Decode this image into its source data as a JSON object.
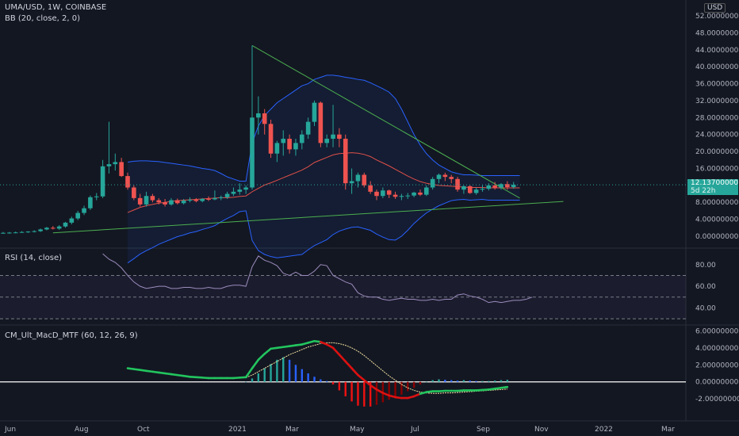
{
  "header": {
    "symbol_line": "UMA/USD, 1W, COINBASE",
    "bb_line": "BB (20, close, 2, 0)",
    "rsi_line": "RSI (14, close)",
    "macd_line": "CM_Ult_MacD_MTF (60, 12, 26, 9)",
    "currency": "USD"
  },
  "price_badge": {
    "value": "12.13700000",
    "countdown": "5d 22h"
  },
  "colors": {
    "background": "#131722",
    "up": "#26a69a",
    "down": "#ef5350",
    "bb_band": "#2962ff",
    "bb_basis": "#e0504a",
    "trend": "#4caf50",
    "rsi": "#9c8cbd",
    "macd_green": "#22c55e",
    "macd_red": "#dd1111",
    "signal": "#f0e0a0"
  },
  "chart_data": [
    {
      "type": "candlestick",
      "title": "UMA/USD, 1W, COINBASE",
      "x_ticks": [
        "Jun",
        "Aug",
        "Oct",
        "2021",
        "Mar",
        "May",
        "Jul",
        "Sep",
        "Nov",
        "2022",
        "Mar"
      ],
      "y_ticks": [
        "52.00000000",
        "48.00000000",
        "44.00000000",
        "40.00000000",
        "36.00000000",
        "32.00000000",
        "28.00000000",
        "24.00000000",
        "20.00000000",
        "16.00000000",
        "12.00000000",
        "8.00000000",
        "4.00000000",
        "0.00000000"
      ],
      "ylim": [
        0,
        52
      ],
      "candles": [
        {
          "o": 0.8,
          "h": 1.0,
          "l": 0.6,
          "c": 0.8
        },
        {
          "o": 0.8,
          "h": 1.0,
          "l": 0.6,
          "c": 0.85
        },
        {
          "o": 0.85,
          "h": 1.1,
          "l": 0.7,
          "c": 0.9
        },
        {
          "o": 0.9,
          "h": 1.2,
          "l": 0.8,
          "c": 1.0
        },
        {
          "o": 1.0,
          "h": 1.2,
          "l": 0.8,
          "c": 1.1
        },
        {
          "o": 1.1,
          "h": 1.4,
          "l": 0.9,
          "c": 1.2
        },
        {
          "o": 1.2,
          "h": 1.8,
          "l": 1.0,
          "c": 1.6
        },
        {
          "o": 1.6,
          "h": 2.2,
          "l": 1.4,
          "c": 2.0
        },
        {
          "o": 2.0,
          "h": 2.4,
          "l": 1.6,
          "c": 1.8
        },
        {
          "o": 1.8,
          "h": 2.6,
          "l": 1.5,
          "c": 2.3
        },
        {
          "o": 2.3,
          "h": 3.4,
          "l": 2.0,
          "c": 3.2
        },
        {
          "o": 3.2,
          "h": 4.6,
          "l": 2.8,
          "c": 4.2
        },
        {
          "o": 4.2,
          "h": 6.0,
          "l": 3.8,
          "c": 5.5
        },
        {
          "o": 5.5,
          "h": 7.2,
          "l": 5.0,
          "c": 6.6
        },
        {
          "o": 6.6,
          "h": 9.6,
          "l": 6.2,
          "c": 9.2
        },
        {
          "o": 9.2,
          "h": 10.2,
          "l": 8.5,
          "c": 9.4
        },
        {
          "o": 9.4,
          "h": 18.0,
          "l": 9.0,
          "c": 16.5
        },
        {
          "o": 16.5,
          "h": 27.0,
          "l": 14.8,
          "c": 17.0
        },
        {
          "o": 17.0,
          "h": 19.5,
          "l": 15.5,
          "c": 17.5
        },
        {
          "o": 17.5,
          "h": 18.5,
          "l": 14.0,
          "c": 14.2
        },
        {
          "o": 14.2,
          "h": 15.0,
          "l": 11.0,
          "c": 11.5
        },
        {
          "o": 11.5,
          "h": 12.0,
          "l": 8.5,
          "c": 9.0
        },
        {
          "o": 9.0,
          "h": 10.0,
          "l": 7.0,
          "c": 7.5
        },
        {
          "o": 7.5,
          "h": 10.5,
          "l": 7.0,
          "c": 9.5
        },
        {
          "o": 9.5,
          "h": 10.0,
          "l": 8.0,
          "c": 8.5
        },
        {
          "o": 8.5,
          "h": 9.0,
          "l": 7.5,
          "c": 8.0
        },
        {
          "o": 8.0,
          "h": 8.8,
          "l": 7.0,
          "c": 7.5
        },
        {
          "o": 7.5,
          "h": 9.0,
          "l": 7.2,
          "c": 8.5
        },
        {
          "o": 8.5,
          "h": 8.9,
          "l": 7.5,
          "c": 7.8
        },
        {
          "o": 7.8,
          "h": 8.8,
          "l": 7.5,
          "c": 8.4
        },
        {
          "o": 8.4,
          "h": 9.2,
          "l": 8.0,
          "c": 8.6
        },
        {
          "o": 8.6,
          "h": 9.0,
          "l": 8.0,
          "c": 8.3
        },
        {
          "o": 8.3,
          "h": 9.0,
          "l": 8.0,
          "c": 8.8
        },
        {
          "o": 8.8,
          "h": 9.4,
          "l": 8.3,
          "c": 8.7
        },
        {
          "o": 8.7,
          "h": 10.8,
          "l": 8.5,
          "c": 9.0
        },
        {
          "o": 9.0,
          "h": 9.6,
          "l": 8.5,
          "c": 9.2
        },
        {
          "o": 9.2,
          "h": 10.5,
          "l": 8.8,
          "c": 10.0
        },
        {
          "o": 10.0,
          "h": 11.5,
          "l": 9.5,
          "c": 10.5
        },
        {
          "o": 10.5,
          "h": 12.5,
          "l": 9.8,
          "c": 11.0
        },
        {
          "o": 11.0,
          "h": 12.0,
          "l": 10.0,
          "c": 11.5
        },
        {
          "o": 11.5,
          "h": 45.0,
          "l": 11.0,
          "c": 28.0
        },
        {
          "o": 28.0,
          "h": 33.0,
          "l": 24.0,
          "c": 29.0
        },
        {
          "o": 29.0,
          "h": 30.0,
          "l": 24.0,
          "c": 26.5
        },
        {
          "o": 26.5,
          "h": 27.5,
          "l": 18.5,
          "c": 19.5
        },
        {
          "o": 19.5,
          "h": 22.5,
          "l": 17.5,
          "c": 22.0
        },
        {
          "o": 22.0,
          "h": 25.0,
          "l": 19.0,
          "c": 23.0
        },
        {
          "o": 23.0,
          "h": 24.0,
          "l": 19.5,
          "c": 20.5
        },
        {
          "o": 20.5,
          "h": 23.0,
          "l": 19.0,
          "c": 22.0
        },
        {
          "o": 22.0,
          "h": 25.0,
          "l": 20.5,
          "c": 24.0
        },
        {
          "o": 24.0,
          "h": 28.0,
          "l": 23.0,
          "c": 27.0
        },
        {
          "o": 27.0,
          "h": 32.0,
          "l": 26.0,
          "c": 31.5
        },
        {
          "o": 31.5,
          "h": 31.8,
          "l": 21.0,
          "c": 22.0
        },
        {
          "o": 22.0,
          "h": 24.0,
          "l": 21.0,
          "c": 23.0
        },
        {
          "o": 23.0,
          "h": 31.0,
          "l": 21.0,
          "c": 24.0
        },
        {
          "o": 24.0,
          "h": 25.5,
          "l": 21.0,
          "c": 23.0
        },
        {
          "o": 23.0,
          "h": 24.0,
          "l": 11.0,
          "c": 12.5
        },
        {
          "o": 12.5,
          "h": 16.0,
          "l": 10.0,
          "c": 13.0
        },
        {
          "o": 13.0,
          "h": 15.0,
          "l": 11.5,
          "c": 14.5
        },
        {
          "o": 14.5,
          "h": 15.0,
          "l": 11.5,
          "c": 12.0
        },
        {
          "o": 12.0,
          "h": 13.0,
          "l": 10.0,
          "c": 10.5
        },
        {
          "o": 10.5,
          "h": 11.0,
          "l": 8.5,
          "c": 9.5
        },
        {
          "o": 9.5,
          "h": 11.5,
          "l": 9.0,
          "c": 10.8
        },
        {
          "o": 10.8,
          "h": 11.0,
          "l": 9.0,
          "c": 9.8
        },
        {
          "o": 9.8,
          "h": 10.5,
          "l": 8.8,
          "c": 9.3
        },
        {
          "o": 9.3,
          "h": 10.0,
          "l": 8.5,
          "c": 9.5
        },
        {
          "o": 9.5,
          "h": 10.2,
          "l": 8.8,
          "c": 9.6
        },
        {
          "o": 9.6,
          "h": 10.5,
          "l": 9.2,
          "c": 10.3
        },
        {
          "o": 10.3,
          "h": 11.0,
          "l": 9.5,
          "c": 9.8
        },
        {
          "o": 9.8,
          "h": 12.0,
          "l": 9.5,
          "c": 11.5
        },
        {
          "o": 11.5,
          "h": 14.0,
          "l": 11.0,
          "c": 13.5
        },
        {
          "o": 13.5,
          "h": 14.8,
          "l": 12.5,
          "c": 14.5
        },
        {
          "o": 14.5,
          "h": 15.0,
          "l": 13.0,
          "c": 14.0
        },
        {
          "o": 14.0,
          "h": 14.5,
          "l": 12.5,
          "c": 13.5
        },
        {
          "o": 13.5,
          "h": 14.0,
          "l": 10.5,
          "c": 11.0
        },
        {
          "o": 11.0,
          "h": 12.0,
          "l": 10.0,
          "c": 11.8
        },
        {
          "o": 11.8,
          "h": 12.0,
          "l": 10.0,
          "c": 10.2
        },
        {
          "o": 10.2,
          "h": 11.5,
          "l": 9.8,
          "c": 11.0
        },
        {
          "o": 11.0,
          "h": 12.0,
          "l": 10.5,
          "c": 11.2
        },
        {
          "o": 11.2,
          "h": 12.5,
          "l": 10.8,
          "c": 12.0
        },
        {
          "o": 12.0,
          "h": 12.8,
          "l": 11.0,
          "c": 11.5
        },
        {
          "o": 11.5,
          "h": 12.5,
          "l": 11.0,
          "c": 12.3
        },
        {
          "o": 12.3,
          "h": 13.0,
          "l": 11.0,
          "c": 11.6
        },
        {
          "o": 11.6,
          "h": 12.8,
          "l": 11.2,
          "c": 12.137
        }
      ],
      "bb_basis": [
        null,
        null,
        null,
        null,
        null,
        null,
        null,
        null,
        null,
        null,
        null,
        null,
        null,
        null,
        null,
        null,
        null,
        null,
        null,
        null,
        5.6,
        6.2,
        6.8,
        7.2,
        7.5,
        7.8,
        8.0,
        8.2,
        8.4,
        8.5,
        8.6,
        8.7,
        8.8,
        8.9,
        9.0,
        9.1,
        9.1,
        9.2,
        9.4,
        9.5,
        10.5,
        11.3,
        12.1,
        12.6,
        13.2,
        13.8,
        14.4,
        15.0,
        15.6,
        16.4,
        17.4,
        18.0,
        18.6,
        19.2,
        19.5,
        19.6,
        19.7,
        19.6,
        19.3,
        18.8,
        18.0,
        17.3,
        16.6,
        15.8,
        15.0,
        14.2,
        13.5,
        12.9,
        12.5,
        12.2,
        12.0,
        11.9,
        11.8,
        11.7,
        11.6,
        11.5,
        11.5,
        11.5,
        11.4,
        11.4,
        11.4,
        11.4,
        11.4,
        11.4
      ],
      "bb_upper": [
        null,
        null,
        null,
        null,
        null,
        null,
        null,
        null,
        null,
        null,
        null,
        null,
        null,
        null,
        null,
        null,
        null,
        null,
        null,
        null,
        17.5,
        17.7,
        17.8,
        17.8,
        17.7,
        17.6,
        17.4,
        17.2,
        17.0,
        16.8,
        16.6,
        16.3,
        16.0,
        15.8,
        15.5,
        14.8,
        14.0,
        13.5,
        13.0,
        13.0,
        22.0,
        26.0,
        28.5,
        30.0,
        31.5,
        32.5,
        33.5,
        34.5,
        35.5,
        36.0,
        37.0,
        37.5,
        38.0,
        38.0,
        37.8,
        37.5,
        37.3,
        37.0,
        36.8,
        36.2,
        35.5,
        34.8,
        34.0,
        32.5,
        30.0,
        27.0,
        24.0,
        21.5,
        19.5,
        18.0,
        16.8,
        16.0,
        15.2,
        14.8,
        14.5,
        14.5,
        14.4,
        14.3,
        14.3,
        14.3,
        14.3,
        14.3,
        14.3,
        14.3
      ],
      "bb_lower": [
        null,
        null,
        null,
        null,
        null,
        null,
        null,
        null,
        null,
        null,
        null,
        null,
        null,
        null,
        null,
        null,
        null,
        null,
        null,
        null,
        -6.3,
        -5.3,
        -4.2,
        -3.4,
        -2.7,
        -1.9,
        -1.3,
        -0.7,
        -0.1,
        0.3,
        0.8,
        1.1,
        1.6,
        2.0,
        2.5,
        3.4,
        4.2,
        4.9,
        5.8,
        6.0,
        -1.0,
        -3.4,
        -4.3,
        -4.8,
        -5.1,
        -4.9,
        -4.7,
        -4.5,
        -4.3,
        -3.2,
        -2.2,
        -1.5,
        -0.8,
        0.4,
        1.2,
        1.7,
        2.1,
        2.2,
        1.8,
        1.4,
        0.5,
        -0.2,
        -0.8,
        -0.9,
        0.0,
        1.4,
        3.0,
        4.3,
        5.5,
        6.4,
        7.2,
        7.8,
        8.4,
        8.6,
        8.7,
        8.5,
        8.6,
        8.7,
        8.5,
        8.5,
        8.5,
        8.5,
        8.5,
        8.5
      ],
      "trendline_descending": {
        "from": [
          40,
          45.0
        ],
        "to": [
          83,
          9.0
        ]
      },
      "trendline_ascending": {
        "from": [
          8,
          0.8
        ],
        "to": [
          90,
          8.2
        ]
      }
    },
    {
      "type": "line",
      "title": "RSI (14, close)",
      "y_ticks": [
        "80.00",
        "60.00",
        "40.00"
      ],
      "ylim": [
        25,
        93
      ],
      "levels": [
        70,
        50,
        30
      ],
      "values": [
        null,
        null,
        null,
        null,
        null,
        null,
        null,
        null,
        null,
        null,
        null,
        null,
        null,
        null,
        null,
        null,
        90,
        85,
        82,
        77,
        70,
        64,
        60,
        58,
        59,
        60,
        60,
        58,
        58,
        59,
        59,
        58,
        58,
        59,
        58,
        58,
        60,
        61,
        61,
        60,
        78,
        88,
        84,
        82,
        79,
        72,
        70,
        73,
        70,
        70,
        74,
        80,
        79,
        70,
        67,
        64,
        62,
        54,
        51,
        50,
        50,
        48,
        47,
        48,
        49,
        48,
        48,
        47,
        47,
        48,
        47,
        48,
        48,
        52,
        53,
        51,
        50,
        48,
        45,
        46,
        45,
        46,
        47,
        47,
        48,
        50
      ]
    },
    {
      "type": "bar+line",
      "title": "CM_Ult_MacD_MTF (60, 12, 26, 9)",
      "y_ticks": [
        "6.00000000",
        "4.00000000",
        "2.00000000",
        "0.00000000",
        "-2.00000000"
      ],
      "ylim": [
        -4.5,
        6.5
      ],
      "macd": [
        null,
        null,
        null,
        null,
        null,
        null,
        null,
        null,
        null,
        null,
        null,
        null,
        null,
        null,
        null,
        null,
        null,
        null,
        null,
        null,
        1.6,
        1.5,
        1.4,
        1.3,
        1.2,
        1.1,
        1.0,
        0.9,
        0.8,
        0.7,
        0.6,
        0.55,
        0.5,
        0.45,
        0.45,
        0.45,
        0.45,
        0.45,
        0.5,
        0.55,
        1.6,
        2.6,
        3.3,
        3.9,
        4.0,
        4.1,
        4.2,
        4.3,
        4.4,
        4.6,
        4.8,
        4.7,
        4.4,
        4.0,
        3.2,
        2.4,
        1.6,
        0.8,
        0.2,
        -0.4,
        -0.9,
        -1.3,
        -1.6,
        -1.8,
        -1.9,
        -1.9,
        -1.7,
        -1.4,
        -1.2,
        -1.1,
        -1.1,
        -1.05,
        -1.05,
        -1.05,
        -1.0,
        -1.0,
        -1.0,
        -0.95,
        -0.9,
        -0.8,
        -0.7,
        -0.6
      ],
      "signal": [
        null,
        null,
        null,
        null,
        null,
        null,
        null,
        null,
        null,
        null,
        null,
        null,
        null,
        null,
        null,
        null,
        null,
        null,
        null,
        null,
        null,
        null,
        null,
        null,
        null,
        null,
        null,
        null,
        null,
        null,
        null,
        null,
        null,
        null,
        null,
        null,
        null,
        null,
        null,
        0.5,
        0.8,
        1.2,
        1.6,
        2.0,
        2.4,
        2.8,
        3.2,
        3.5,
        3.8,
        4.1,
        4.3,
        4.5,
        4.6,
        4.6,
        4.5,
        4.3,
        4.0,
        3.6,
        3.1,
        2.5,
        1.9,
        1.3,
        0.7,
        0.2,
        -0.3,
        -0.7,
        -1.0,
        -1.2,
        -1.3,
        -1.35,
        -1.35,
        -1.3,
        -1.3,
        -1.25,
        -1.2,
        -1.15,
        -1.1,
        -1.05,
        -1.0,
        -0.95,
        -0.9,
        -0.85
      ],
      "histogram": [
        null,
        null,
        null,
        null,
        null,
        null,
        null,
        null,
        null,
        null,
        null,
        null,
        null,
        null,
        null,
        null,
        null,
        null,
        null,
        null,
        null,
        null,
        null,
        null,
        null,
        null,
        null,
        null,
        null,
        null,
        null,
        null,
        null,
        null,
        null,
        null,
        null,
        null,
        null,
        0.0,
        0.4,
        1.0,
        1.6,
        2.1,
        2.6,
        2.9,
        2.6,
        2.0,
        1.5,
        1.0,
        0.6,
        0.3,
        0.1,
        -0.3,
        -1.0,
        -1.7,
        -2.3,
        -2.8,
        -2.9,
        -2.9,
        -2.7,
        -2.4,
        -2.1,
        -1.8,
        -1.5,
        -1.1,
        -0.7,
        -0.3,
        0.0,
        0.2,
        0.3,
        0.25,
        0.2,
        0.15,
        0.2,
        0.15,
        0.1,
        0.1,
        0.1,
        0.15,
        0.2,
        0.25
      ]
    }
  ]
}
